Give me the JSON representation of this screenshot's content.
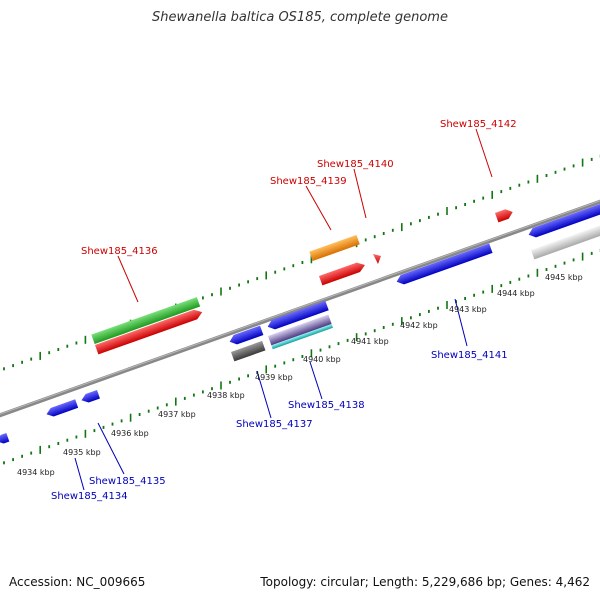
{
  "title": "Shewanella baltica OS185, complete genome",
  "footer": {
    "accession": "Accession: NC_009665",
    "topology": "Topology: circular; Length: 5,229,686 bp; Genes: 4,462"
  },
  "kbp_labels": [
    "4934 kbp",
    "4935 kbp",
    "4936 kbp",
    "4937 kbp",
    "4938 kbp",
    "4939 kbp",
    "4940 kbp",
    "4941 kbp",
    "4942 kbp",
    "4943 kbp",
    "4944 kbp",
    "4945 kbp"
  ],
  "gene_labels": [
    {
      "text": "Shew185_4136",
      "strand": "forward"
    },
    {
      "text": "Shew185_4139",
      "strand": "forward"
    },
    {
      "text": "Shew185_4140",
      "strand": "forward"
    },
    {
      "text": "Shew185_4142",
      "strand": "forward"
    },
    {
      "text": "Shew185_4134",
      "strand": "reverse"
    },
    {
      "text": "Shew185_4135",
      "strand": "reverse"
    },
    {
      "text": "Shew185_4137",
      "strand": "reverse"
    },
    {
      "text": "Shew185_4138",
      "strand": "reverse"
    },
    {
      "text": "Shew185_4141",
      "strand": "reverse"
    }
  ],
  "colors": {
    "forward_label": "#cc0000",
    "reverse_label": "#0000bb",
    "backbone": "#888888",
    "tick": "#117711",
    "red": "#ee0000",
    "green": "#33bb33",
    "orange": "#ee8800",
    "blue": "#0000ee",
    "gray_dark": "#555555",
    "gray_light": "#cccccc",
    "cyan": "#22cccc",
    "purple": "#7a6aa8"
  }
}
